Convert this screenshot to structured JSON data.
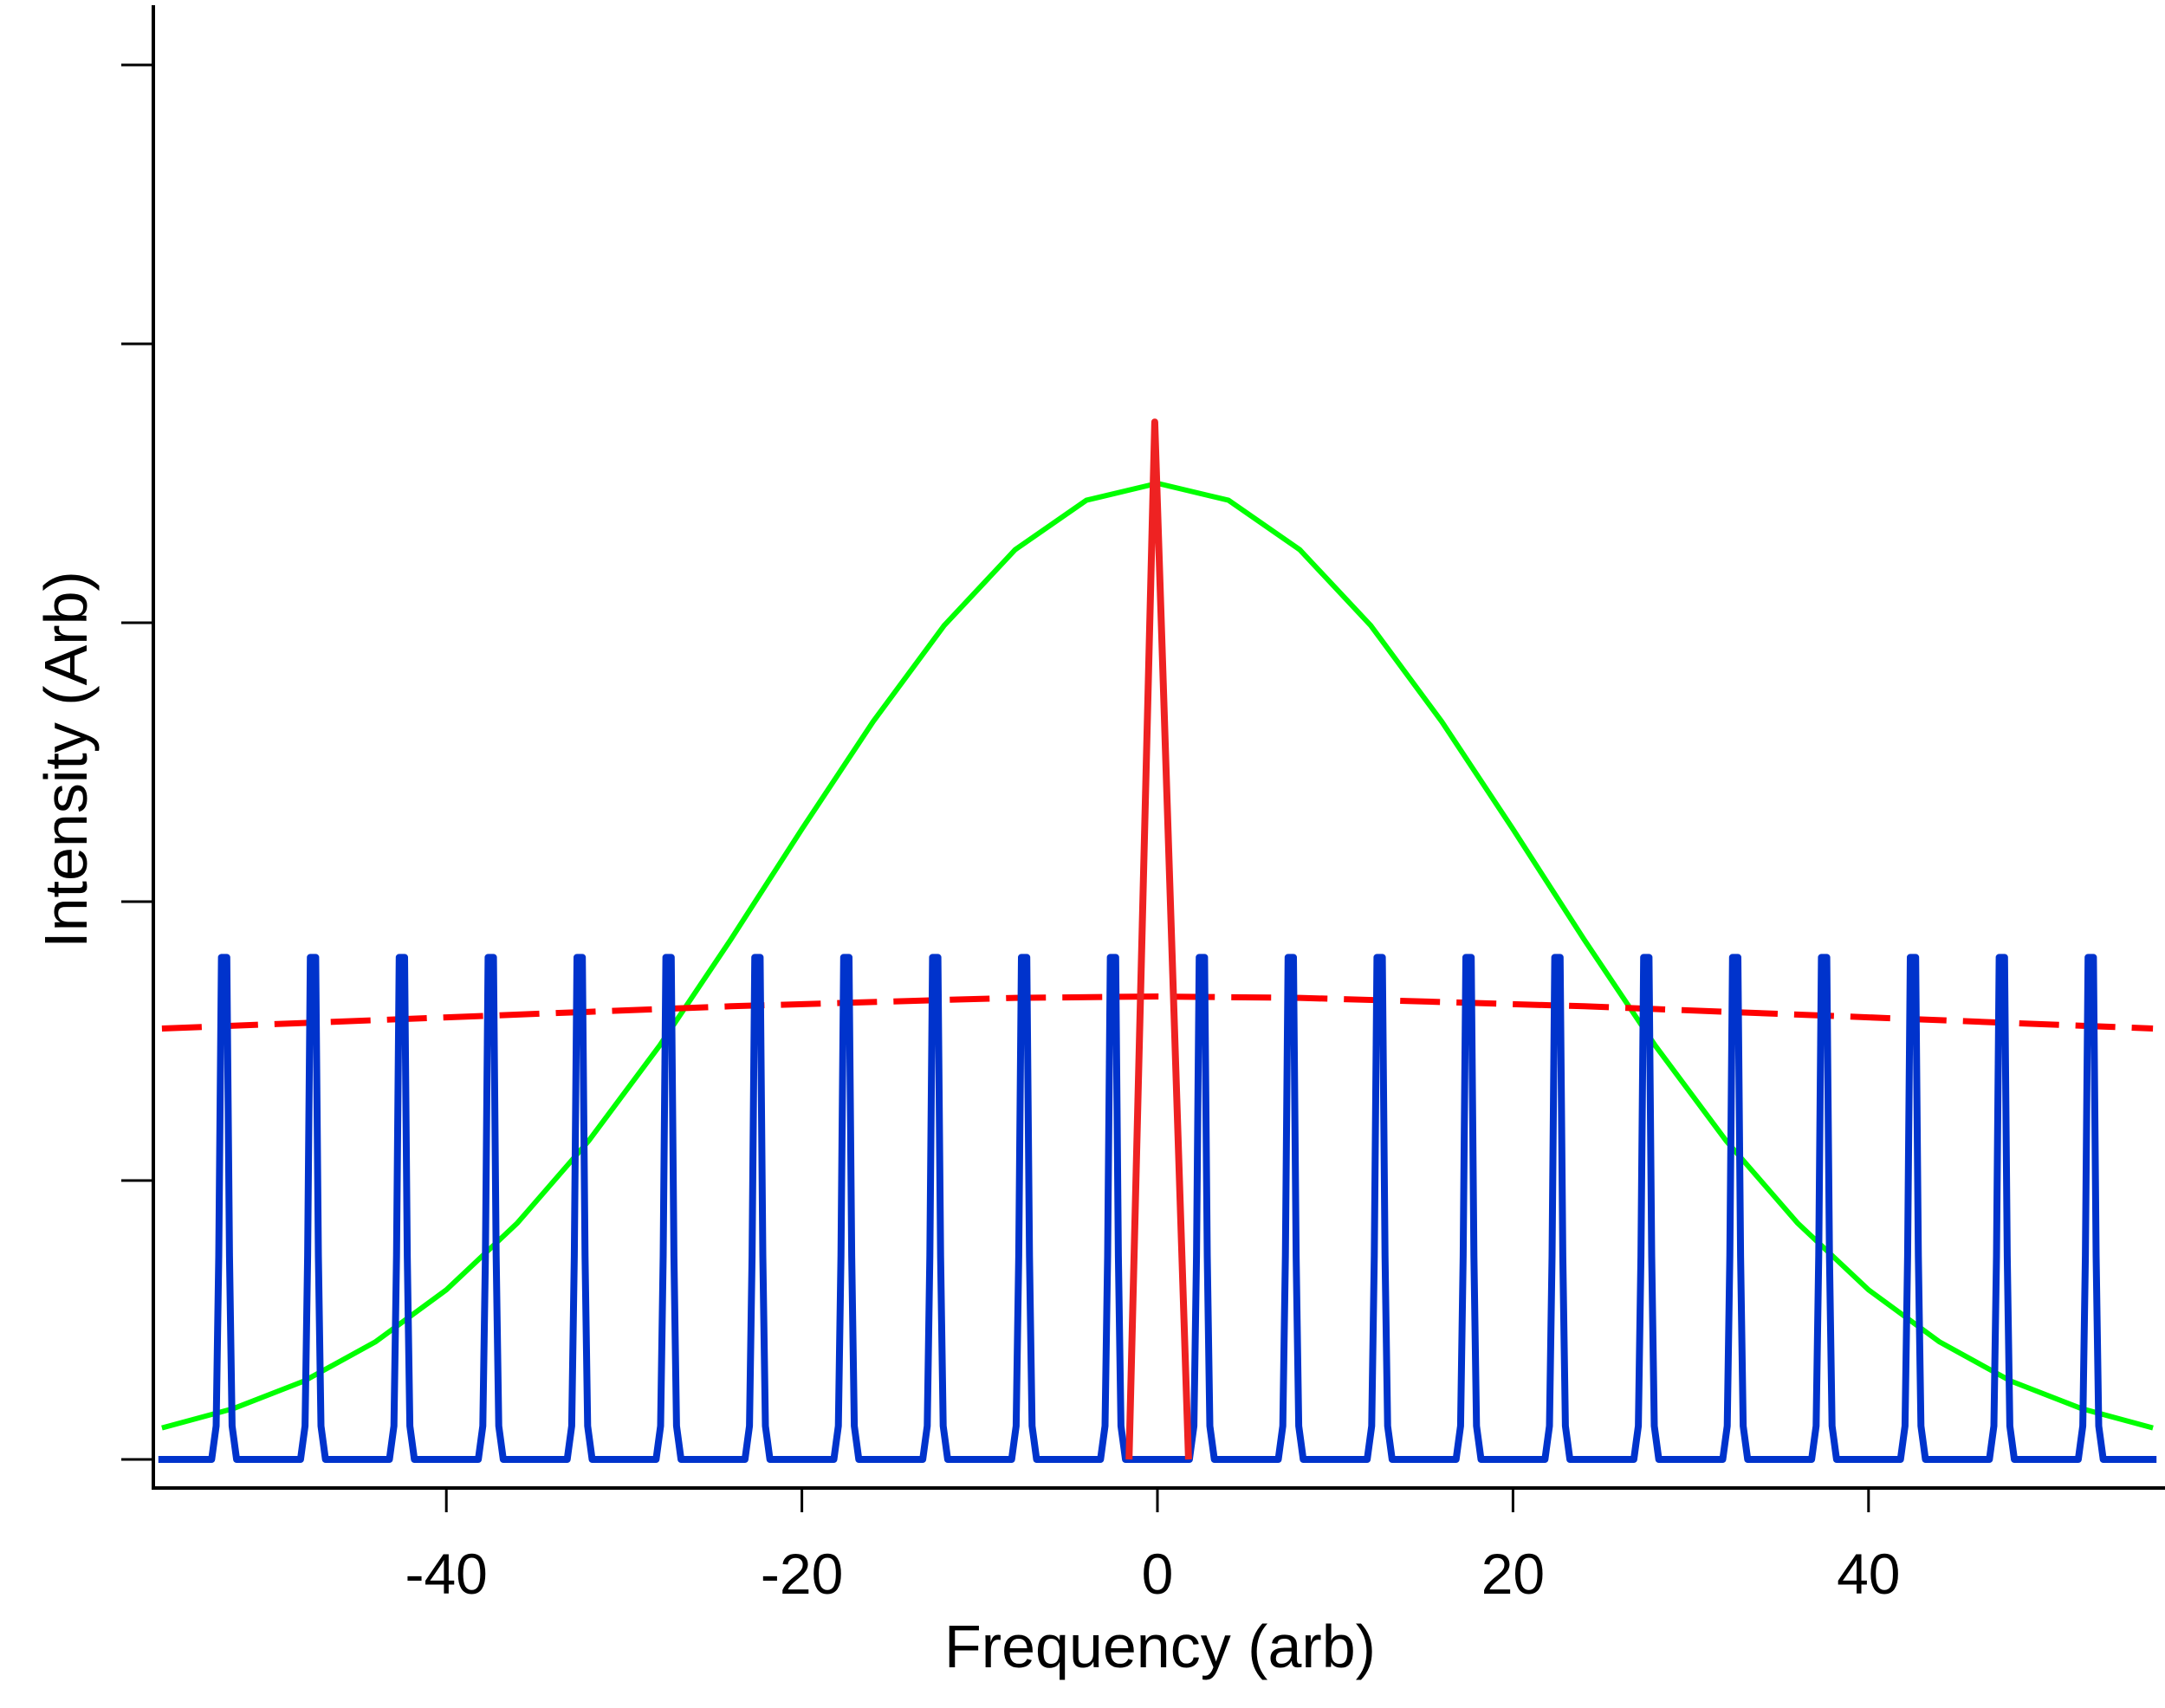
{
  "chart_data": {
    "type": "line",
    "title": "",
    "xlabel": "Frequency (arb)",
    "ylabel": "Intensity (Arb)",
    "xlim": [
      -56.5,
      56.2
    ],
    "ylim": [
      -0.1,
      5.2
    ],
    "x_ticks": [
      -40,
      -20,
      0,
      20,
      40
    ],
    "x_tick_labels": [
      "-40",
      "-20",
      "0",
      "20",
      "40"
    ],
    "y_ticks": [
      0,
      1,
      2,
      3,
      4,
      5
    ],
    "y_tick_labels_shown": false,
    "grid": false,
    "legend": "none",
    "series": [
      {
        "style": "solid",
        "color": "#0033CC",
        "peak_centers": [
          -52.5,
          -47.5,
          -42.5,
          -37.5,
          -32.5,
          -27.5,
          -22.5,
          -17.5,
          -12.5,
          -7.5,
          -2.5,
          2.5,
          7.5,
          12.5,
          17.5,
          22.5,
          27.5,
          32.5,
          37.5,
          42.5,
          47.5,
          52.5
        ],
        "peak_profile": {
          "offsets": [
            -0.7,
            -0.45,
            -0.3,
            -0.15,
            0.15,
            0.3,
            0.45,
            0.7
          ],
          "values": [
            0,
            0.12,
            0.73,
            1.8,
            1.8,
            0.73,
            0.12,
            0
          ]
        },
        "baseline": 0
      },
      {
        "style": "solid",
        "color": "#00FF00",
        "x": [
          -56,
          -52,
          -48,
          -44,
          -40,
          -36,
          -32,
          -28,
          -24,
          -20,
          -16,
          -12,
          -8,
          -4,
          0,
          4,
          8,
          12,
          16,
          20,
          24,
          28,
          32,
          36,
          40,
          44,
          48,
          52,
          56
        ],
        "y": [
          0.113,
          0.182,
          0.281,
          0.421,
          0.608,
          0.848,
          1.142,
          1.484,
          1.864,
          2.26,
          2.645,
          2.99,
          3.262,
          3.439,
          3.5,
          3.439,
          3.262,
          2.99,
          2.645,
          2.26,
          1.864,
          1.484,
          1.142,
          0.848,
          0.608,
          0.421,
          0.281,
          0.182,
          0.113
        ]
      },
      {
        "style": "dashed",
        "color": "#FF0000",
        "x": [
          -56,
          -48,
          -40,
          -32,
          -24,
          -16,
          -8,
          0,
          8,
          16,
          24,
          32,
          40,
          48,
          56
        ],
        "y": [
          1.545,
          1.565,
          1.585,
          1.605,
          1.625,
          1.64,
          1.655,
          1.66,
          1.655,
          1.64,
          1.625,
          1.605,
          1.585,
          1.565,
          1.545
        ]
      },
      {
        "style": "solid",
        "color": "#EE2222",
        "x": [
          -1.6,
          -0.15,
          1.75
        ],
        "y": [
          0,
          3.72,
          0
        ]
      }
    ]
  }
}
